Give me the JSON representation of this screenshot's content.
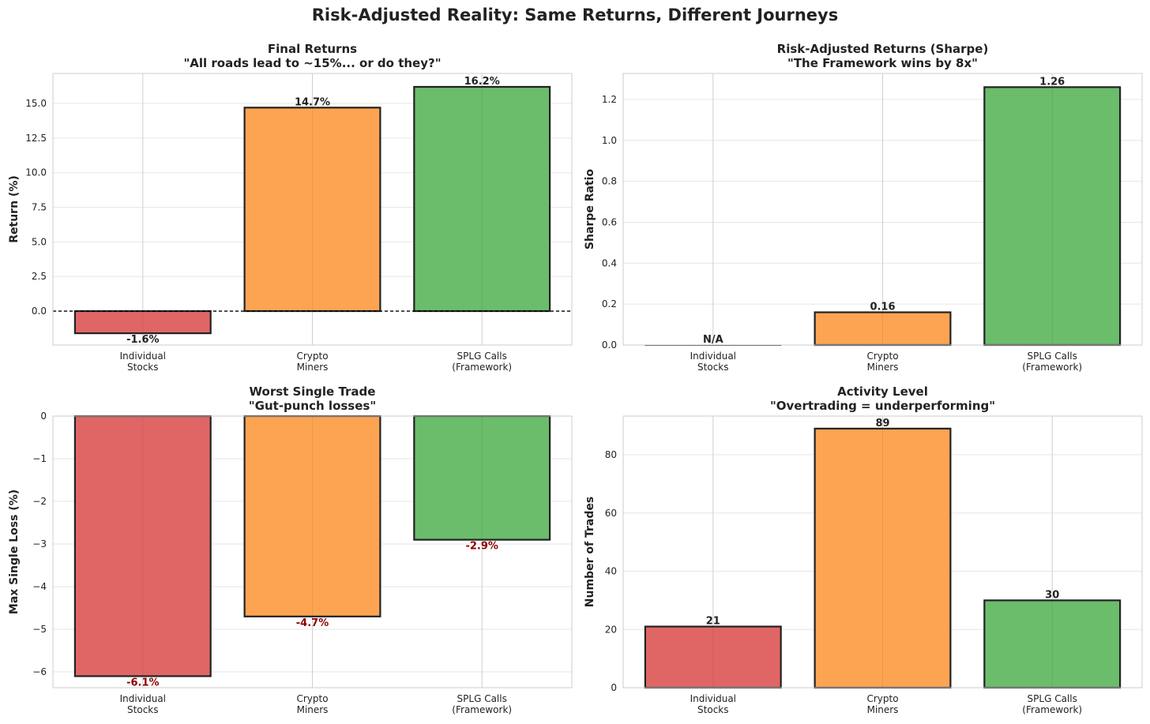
{
  "title": "Risk-Adjusted Reality: Same Returns, Different Journeys",
  "colors": {
    "bars": [
      "#e06666",
      "#fda452",
      "#6bbd6b"
    ],
    "edge": "#222222",
    "loss_label": "#8b0000",
    "grid": "#e6e6e6"
  },
  "chart_data": [
    {
      "type": "bar",
      "title": "Final Returns",
      "subtitle": "\"All roads lead to ~15%... or do they?\"",
      "xlabel": "",
      "ylabel": "Return (%)",
      "categories": [
        "Individual\nStocks",
        "Crypto\nMiners",
        "SPLG Calls\n(Framework)"
      ],
      "values": [
        -1.6,
        14.7,
        16.2
      ],
      "value_labels": [
        "-1.6%",
        "14.7%",
        "16.2%"
      ],
      "ylim": [
        -2.45,
        17.17
      ],
      "yticks": [
        0.0,
        2.5,
        5.0,
        7.5,
        10.0,
        12.5,
        15.0
      ],
      "ytick_labels": [
        "0.0",
        "2.5",
        "5.0",
        "7.5",
        "10.0",
        "12.5",
        "15.0"
      ],
      "zero_line": true,
      "label_style": "dark"
    },
    {
      "type": "bar",
      "title": "Risk-Adjusted Returns (Sharpe)",
      "subtitle": "\"The Framework wins by 8x\"",
      "xlabel": "",
      "ylabel": "Sharpe Ratio",
      "categories": [
        "Individual\nStocks",
        "Crypto\nMiners",
        "SPLG Calls\n(Framework)"
      ],
      "values": [
        0,
        0.16,
        1.26
      ],
      "value_labels": [
        "N/A",
        "0.16",
        "1.26"
      ],
      "ylim": [
        0,
        1.327
      ],
      "yticks": [
        0.0,
        0.2,
        0.4,
        0.6,
        0.8,
        1.0,
        1.2
      ],
      "ytick_labels": [
        "0.0",
        "0.2",
        "0.4",
        "0.6",
        "0.8",
        "1.0",
        "1.2"
      ],
      "zero_line": false,
      "label_style": "dark"
    },
    {
      "type": "bar",
      "title": "Worst Single Trade",
      "subtitle": "\"Gut-punch losses\"",
      "xlabel": "",
      "ylabel": "Max Single Loss (%)",
      "categories": [
        "Individual\nStocks",
        "Crypto\nMiners",
        "SPLG Calls\n(Framework)"
      ],
      "values": [
        -6.1,
        -4.7,
        -2.9
      ],
      "value_labels": [
        "-6.1%",
        "-4.7%",
        "-2.9%"
      ],
      "ylim": [
        -6.37,
        0
      ],
      "yticks": [
        -6,
        -5,
        -4,
        -3,
        -2,
        -1,
        0
      ],
      "ytick_labels": [
        "−6",
        "−5",
        "−4",
        "−3",
        "−2",
        "−1",
        "0"
      ],
      "zero_line": false,
      "label_style": "loss"
    },
    {
      "type": "bar",
      "title": "Activity Level",
      "subtitle": "\"Overtrading = underperforming\"",
      "xlabel": "",
      "ylabel": "Number of Trades",
      "categories": [
        "Individual\nStocks",
        "Crypto\nMiners",
        "SPLG Calls\n(Framework)"
      ],
      "values": [
        21,
        89,
        30
      ],
      "value_labels": [
        "21",
        "89",
        "30"
      ],
      "ylim": [
        0,
        93.3
      ],
      "yticks": [
        0,
        20,
        40,
        60,
        80
      ],
      "ytick_labels": [
        "0",
        "20",
        "40",
        "60",
        "80"
      ],
      "zero_line": false,
      "label_style": "dark"
    }
  ]
}
